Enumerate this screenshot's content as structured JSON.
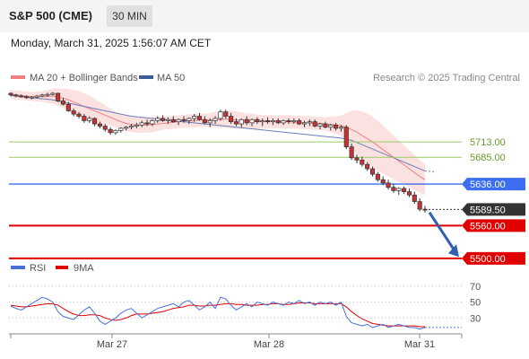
{
  "header": {
    "instrument": "S&P 500 (CME)",
    "timeframe": "30 MIN",
    "timestamp": "Monday, March 31, 2025 1:56:07 AM CET"
  },
  "credit": "Research © 2025 Trading Central",
  "colors": {
    "candle_up": "#ffffff",
    "candle_down": "#c83232",
    "ma20": "#f08080",
    "bollinger_fill": "#fcdcdc",
    "ma50": "#6a7fb8",
    "resistance": "#99cc66",
    "pivot": "#3b6ef0",
    "support": "#e00000",
    "last_price": "#333333",
    "rsi": "#4a6fd8",
    "rsi_ma": "#e00000",
    "arrow": "#2f5fb0"
  },
  "chart_data": [
    {
      "type": "candlestick",
      "title": "",
      "legend": [
        {
          "name": "MA 20 + Bollinger Bands",
          "color": "#f08080"
        },
        {
          "name": "MA 50",
          "color": "#3a5a9a"
        }
      ],
      "x_labels": [
        "Mar 27",
        "Mar 28",
        "Mar 31"
      ],
      "ylim": [
        5490,
        5820
      ],
      "last_price": 5589.5,
      "levels": [
        {
          "value": 5713.0,
          "label": "5713.00",
          "kind": "resistance"
        },
        {
          "value": 5685.0,
          "label": "5685.00",
          "kind": "resistance"
        },
        {
          "value": 5636.0,
          "label": "5636.00",
          "kind": "pivot"
        },
        {
          "value": 5560.0,
          "label": "5560.00",
          "kind": "support"
        },
        {
          "value": 5500.0,
          "label": "5500.00",
          "kind": "support"
        }
      ],
      "last_price_label": "5589.50",
      "forecast_arrow": {
        "from": 5584,
        "to": 5506
      },
      "candles": [
        [
          5802,
          5804,
          5796,
          5799
        ],
        [
          5799,
          5801,
          5795,
          5797
        ],
        [
          5797,
          5800,
          5794,
          5796
        ],
        [
          5796,
          5798,
          5792,
          5794
        ],
        [
          5794,
          5797,
          5791,
          5795
        ],
        [
          5795,
          5799,
          5793,
          5797
        ],
        [
          5797,
          5801,
          5795,
          5799
        ],
        [
          5799,
          5803,
          5796,
          5800
        ],
        [
          5800,
          5804,
          5798,
          5802
        ],
        [
          5802,
          5803,
          5786,
          5788
        ],
        [
          5788,
          5794,
          5780,
          5782
        ],
        [
          5782,
          5786,
          5768,
          5770
        ],
        [
          5770,
          5774,
          5760,
          5764
        ],
        [
          5764,
          5768,
          5756,
          5760
        ],
        [
          5760,
          5764,
          5748,
          5752
        ],
        [
          5752,
          5760,
          5748,
          5756
        ],
        [
          5756,
          5758,
          5742,
          5746
        ],
        [
          5746,
          5750,
          5738,
          5742
        ],
        [
          5742,
          5746,
          5732,
          5736
        ],
        [
          5736,
          5740,
          5726,
          5730
        ],
        [
          5730,
          5736,
          5726,
          5734
        ],
        [
          5734,
          5740,
          5730,
          5738
        ],
        [
          5738,
          5742,
          5734,
          5740
        ],
        [
          5740,
          5746,
          5736,
          5742
        ],
        [
          5742,
          5748,
          5738,
          5744
        ],
        [
          5744,
          5752,
          5740,
          5748
        ],
        [
          5748,
          5754,
          5742,
          5746
        ],
        [
          5746,
          5754,
          5742,
          5752
        ],
        [
          5752,
          5760,
          5748,
          5756
        ],
        [
          5756,
          5762,
          5750,
          5752
        ],
        [
          5752,
          5758,
          5746,
          5754
        ],
        [
          5754,
          5760,
          5748,
          5750
        ],
        [
          5750,
          5756,
          5744,
          5754
        ],
        [
          5754,
          5760,
          5748,
          5752
        ],
        [
          5752,
          5758,
          5746,
          5756
        ],
        [
          5756,
          5764,
          5750,
          5760
        ],
        [
          5760,
          5766,
          5752,
          5754
        ],
        [
          5754,
          5760,
          5746,
          5748
        ],
        [
          5748,
          5756,
          5740,
          5752
        ],
        [
          5752,
          5760,
          5746,
          5756
        ],
        [
          5756,
          5772,
          5752,
          5768
        ],
        [
          5768,
          5772,
          5756,
          5760
        ],
        [
          5760,
          5766,
          5746,
          5750
        ],
        [
          5750,
          5756,
          5742,
          5746
        ],
        [
          5746,
          5756,
          5740,
          5754
        ],
        [
          5754,
          5760,
          5744,
          5748
        ],
        [
          5748,
          5756,
          5742,
          5754
        ],
        [
          5754,
          5758,
          5746,
          5750
        ],
        [
          5750,
          5756,
          5742,
          5752
        ],
        [
          5752,
          5758,
          5746,
          5750
        ],
        [
          5750,
          5756,
          5744,
          5752
        ],
        [
          5752,
          5756,
          5746,
          5748
        ],
        [
          5748,
          5754,
          5744,
          5752
        ],
        [
          5752,
          5756,
          5746,
          5750
        ],
        [
          5750,
          5756,
          5746,
          5752
        ],
        [
          5752,
          5756,
          5744,
          5746
        ],
        [
          5746,
          5752,
          5740,
          5748
        ],
        [
          5748,
          5754,
          5742,
          5750
        ],
        [
          5750,
          5754,
          5740,
          5742
        ],
        [
          5742,
          5748,
          5736,
          5746
        ],
        [
          5746,
          5750,
          5738,
          5740
        ],
        [
          5740,
          5746,
          5734,
          5744
        ],
        [
          5744,
          5748,
          5734,
          5738
        ],
        [
          5738,
          5744,
          5732,
          5740
        ],
        [
          5740,
          5744,
          5700,
          5704
        ],
        [
          5704,
          5710,
          5680,
          5684
        ],
        [
          5684,
          5690,
          5674,
          5680
        ],
        [
          5680,
          5686,
          5668,
          5672
        ],
        [
          5672,
          5676,
          5660,
          5664
        ],
        [
          5664,
          5668,
          5650,
          5654
        ],
        [
          5654,
          5658,
          5640,
          5644
        ],
        [
          5644,
          5650,
          5634,
          5638
        ],
        [
          5638,
          5644,
          5626,
          5630
        ],
        [
          5630,
          5636,
          5620,
          5624
        ],
        [
          5624,
          5630,
          5616,
          5628
        ],
        [
          5628,
          5632,
          5618,
          5622
        ],
        [
          5622,
          5628,
          5612,
          5616
        ],
        [
          5616,
          5622,
          5600,
          5604
        ],
        [
          5604,
          5610,
          5586,
          5590
        ],
        [
          5590,
          5596,
          5584,
          5589
        ]
      ],
      "ma50": [
        5798,
        5797,
        5796,
        5795,
        5794,
        5793,
        5792,
        5791,
        5790,
        5788,
        5786,
        5784,
        5782,
        5780,
        5778,
        5776,
        5774,
        5772,
        5770,
        5768,
        5766,
        5764,
        5762,
        5760,
        5759,
        5758,
        5757,
        5756,
        5755,
        5754,
        5753,
        5752,
        5751,
        5750,
        5749,
        5748,
        5747,
        5746,
        5745,
        5744,
        5743,
        5742,
        5741,
        5740,
        5739,
        5738,
        5737,
        5736,
        5735,
        5734,
        5733,
        5732,
        5731,
        5730,
        5729,
        5728,
        5727,
        5726,
        5725,
        5724,
        5723,
        5722,
        5721,
        5720,
        5718,
        5716,
        5712,
        5708,
        5704,
        5700,
        5696,
        5692,
        5688,
        5684,
        5680,
        5676,
        5672,
        5668,
        5664,
        5660
      ],
      "ma20": [
        5800,
        5799,
        5798,
        5797,
        5796,
        5796,
        5796,
        5796,
        5797,
        5795,
        5793,
        5790,
        5786,
        5782,
        5778,
        5774,
        5770,
        5766,
        5762,
        5758,
        5754,
        5750,
        5747,
        5745,
        5744,
        5744,
        5744,
        5745,
        5746,
        5747,
        5748,
        5749,
        5750,
        5751,
        5752,
        5752,
        5753,
        5753,
        5753,
        5754,
        5754,
        5755,
        5754,
        5753,
        5752,
        5751,
        5751,
        5750,
        5750,
        5750,
        5750,
        5750,
        5750,
        5750,
        5749,
        5749,
        5748,
        5748,
        5747,
        5747,
        5746,
        5745,
        5744,
        5743,
        5740,
        5736,
        5731,
        5725,
        5719,
        5713,
        5706,
        5699,
        5692,
        5685,
        5678,
        5671,
        5664,
        5657,
        5650,
        5644
      ],
      "bb_width": [
        8,
        8,
        8,
        8,
        8,
        9,
        10,
        12,
        14,
        16,
        18,
        20,
        22,
        24,
        24,
        24,
        22,
        20,
        18,
        16,
        14,
        14,
        14,
        14,
        14,
        14,
        14,
        14,
        13,
        12,
        12,
        12,
        12,
        12,
        12,
        12,
        12,
        12,
        13,
        14,
        15,
        16,
        16,
        16,
        15,
        14,
        14,
        13,
        12,
        12,
        12,
        12,
        12,
        12,
        12,
        12,
        12,
        12,
        12,
        12,
        12,
        14,
        16,
        18,
        26,
        34,
        40,
        44,
        46,
        46,
        46,
        44,
        42,
        40,
        38,
        36,
        34,
        32,
        30,
        28
      ]
    },
    {
      "type": "line",
      "title": "",
      "legend": [
        {
          "name": "RSI",
          "color": "#4a6fd8"
        },
        {
          "name": "9MA",
          "color": "#e00000"
        }
      ],
      "ylim": [
        10,
        80
      ],
      "ticks": [
        70,
        50,
        30
      ],
      "rsi": [
        45,
        42,
        40,
        44,
        48,
        52,
        56,
        54,
        50,
        38,
        32,
        30,
        28,
        34,
        40,
        44,
        36,
        26,
        22,
        26,
        30,
        36,
        40,
        42,
        36,
        30,
        34,
        38,
        42,
        44,
        46,
        48,
        44,
        50,
        52,
        46,
        40,
        44,
        50,
        42,
        56,
        54,
        46,
        40,
        44,
        48,
        44,
        50,
        48,
        46,
        50,
        48,
        46,
        50,
        48,
        52,
        48,
        50,
        46,
        50,
        48,
        50,
        46,
        50,
        32,
        24,
        22,
        20,
        22,
        18,
        20,
        22,
        18,
        20,
        22,
        20,
        18,
        18,
        16,
        18
      ],
      "rsi_ma": [
        46,
        45,
        44,
        44,
        45,
        46,
        47,
        48,
        48,
        46,
        42,
        38,
        35,
        33,
        33,
        34,
        34,
        33,
        30,
        28,
        27,
        28,
        30,
        33,
        35,
        35,
        35,
        36,
        37,
        38,
        40,
        42,
        43,
        44,
        46,
        46,
        45,
        45,
        46,
        46,
        47,
        48,
        48,
        47,
        47,
        46,
        46,
        46,
        47,
        47,
        48,
        48,
        47,
        47,
        48,
        49,
        49,
        49,
        48,
        48,
        48,
        48,
        48,
        48,
        44,
        38,
        33,
        29,
        26,
        23,
        22,
        21,
        20,
        20,
        20,
        20,
        20,
        20,
        19,
        19
      ]
    }
  ]
}
